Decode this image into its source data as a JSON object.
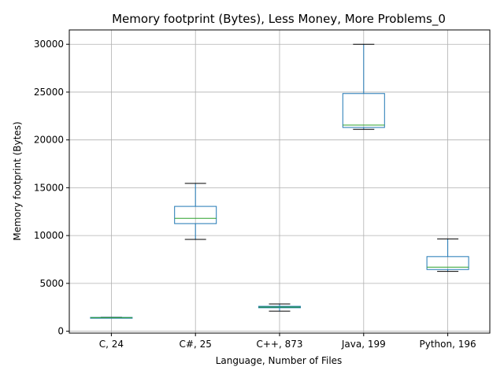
{
  "chart_data": {
    "type": "boxplot",
    "title": "Memory footprint (Bytes), Less Money, More Problems_0",
    "xlabel": "Language, Number of Files",
    "ylabel": "Memory footprint (Bytes)",
    "ylim": [
      -200,
      31500
    ],
    "yticks": [
      0,
      5000,
      10000,
      15000,
      20000,
      25000,
      30000
    ],
    "grid": true,
    "categories": [
      "C, 24",
      "C#, 25",
      "C++, 873",
      "Java, 199",
      "Python, 196"
    ],
    "boxes": [
      {
        "category": "C, 24",
        "whisker_low": 1380,
        "q1": 1400,
        "median": 1420,
        "q3": 1440,
        "whisker_high": 1460
      },
      {
        "category": "C#, 25",
        "whisker_low": 9600,
        "q1": 11250,
        "median": 11800,
        "q3": 13050,
        "whisker_high": 15450
      },
      {
        "category": "C++, 873",
        "whisker_low": 2100,
        "q1": 2450,
        "median": 2520,
        "q3": 2600,
        "whisker_high": 2850
      },
      {
        "category": "Java, 199",
        "whisker_low": 21100,
        "q1": 21300,
        "median": 21550,
        "q3": 24850,
        "whisker_high": 30000
      },
      {
        "category": "Python, 196",
        "whisker_low": 6250,
        "q1": 6450,
        "median": 6700,
        "q3": 7800,
        "whisker_high": 9650
      }
    ],
    "colors": {
      "box": "#1f77b4",
      "median": "#2ca02c",
      "whisker_cap": "#000000",
      "grid": "#b0b0b0",
      "axes": "#000000"
    }
  }
}
